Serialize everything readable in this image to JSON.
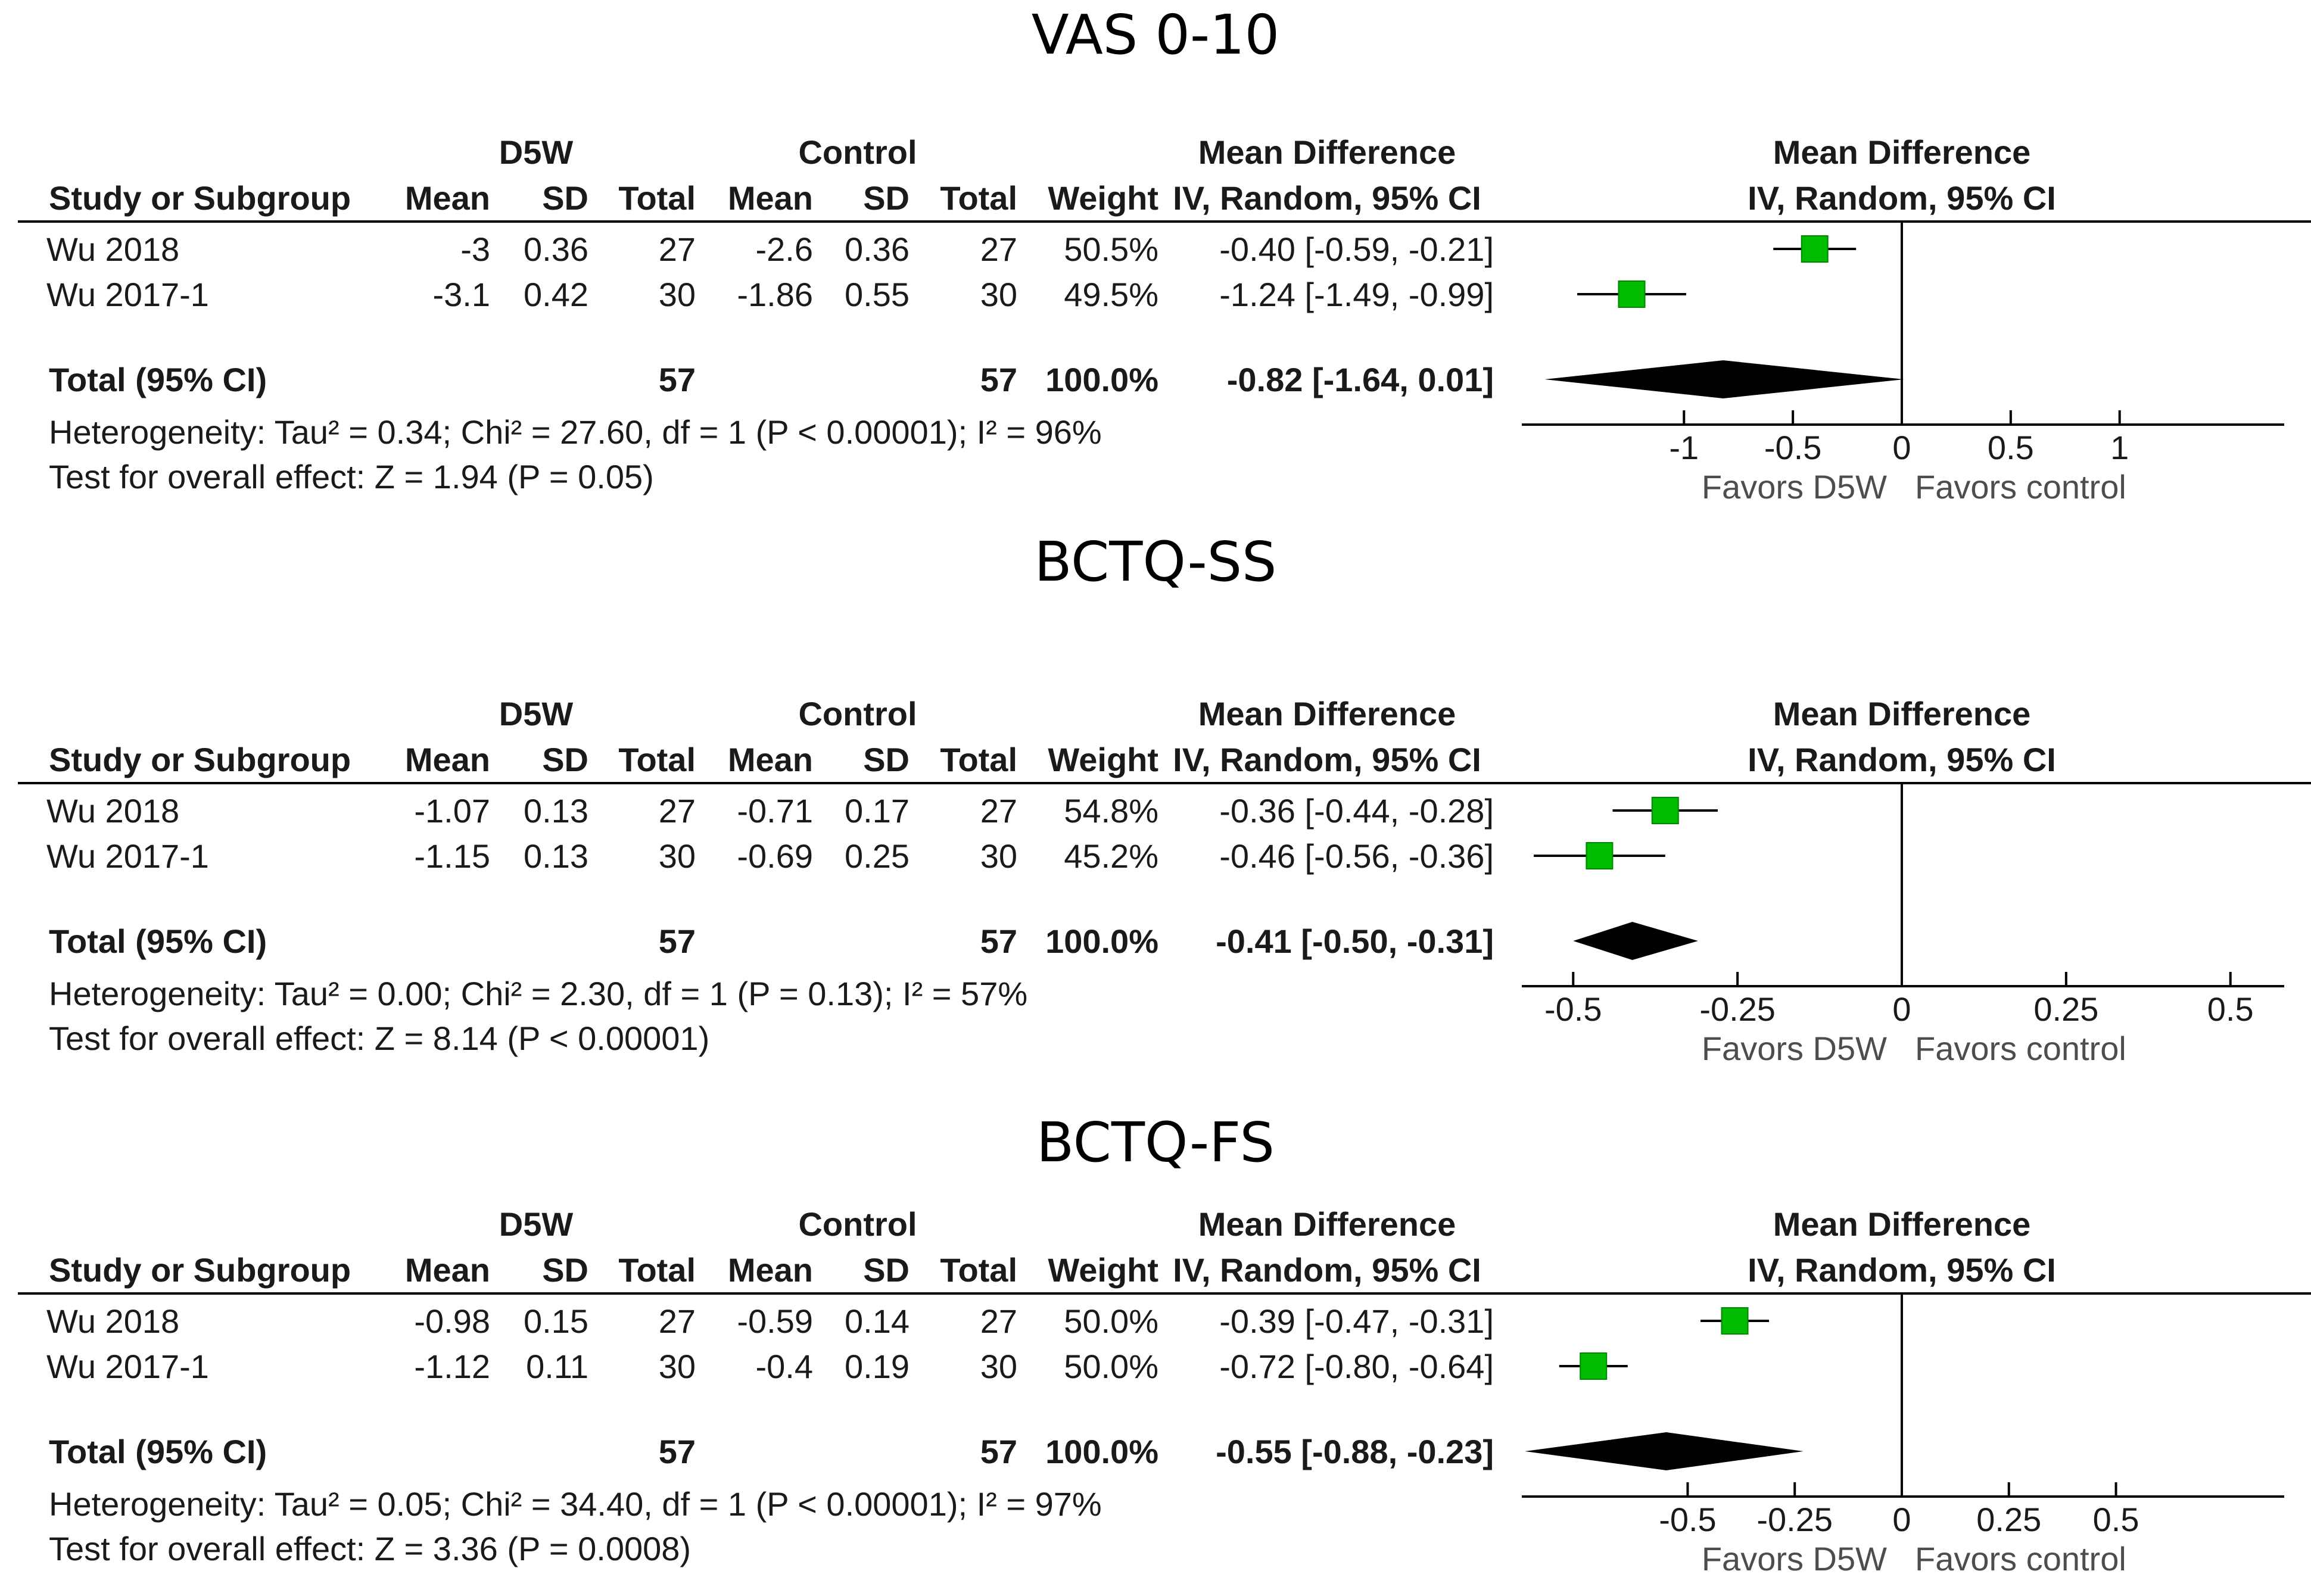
{
  "colors": {
    "marker": "#00bb00",
    "diamond": "#000000",
    "line": "#000000"
  },
  "chart_data": [
    {
      "type": "forest",
      "title": "VAS 0-10",
      "header": {
        "group1": "D5W",
        "group2": "Control",
        "md": "Mean Difference",
        "md_sub": "IV, Random, 95% CI",
        "plot_title": "Mean Difference",
        "plot_sub": "IV, Random, 95% CI",
        "study": "Study or Subgroup",
        "mean": "Mean",
        "sd": "SD",
        "total": "Total",
        "weight": "Weight"
      },
      "studies": [
        {
          "name": "Wu 2018",
          "mean1": "-3",
          "sd1": "0.36",
          "n1": "27",
          "mean2": "-2.6",
          "sd2": "0.36",
          "n2": "27",
          "weight_label": "50.5%",
          "ci_label": "-0.40 [-0.59, -0.21]",
          "md": -0.4,
          "lo": -0.59,
          "hi": -0.21,
          "weight": 50.5
        },
        {
          "name": "Wu 2017-1",
          "mean1": "-3.1",
          "sd1": "0.42",
          "n1": "30",
          "mean2": "-1.86",
          "sd2": "0.55",
          "n2": "30",
          "weight_label": "49.5%",
          "ci_label": "-1.24 [-1.49, -0.99]",
          "md": -1.24,
          "lo": -1.49,
          "hi": -0.99,
          "weight": 49.5
        }
      ],
      "total": {
        "label": "Total (95% CI)",
        "n1": "57",
        "n2": "57",
        "weight_label": "100.0%",
        "ci_label": "-0.82 [-1.64, 0.01]",
        "md": -0.82,
        "lo": -1.64,
        "hi": 0.01
      },
      "heterogeneity": "Heterogeneity: Tau² = 0.34; Chi² = 27.60, df = 1 (P < 0.00001); I² = 96%",
      "overall": "Test for overall effect: Z = 1.94 (P = 0.05)",
      "axis": {
        "ticks": [
          -1,
          -0.5,
          0,
          0.5,
          1
        ],
        "tick_labels": [
          "-1",
          "-0.5",
          "0",
          "0.5",
          "1"
        ],
        "xlim": [
          -1.75,
          1.75
        ],
        "favors_left": "Favors D5W",
        "favors_right": "Favors control"
      }
    },
    {
      "type": "forest",
      "title": "BCTQ-SS",
      "header": {
        "group1": "D5W",
        "group2": "Control",
        "md": "Mean Difference",
        "md_sub": "IV, Random, 95% CI",
        "plot_title": "Mean Difference",
        "plot_sub": "IV, Random, 95% CI",
        "study": "Study or Subgroup",
        "mean": "Mean",
        "sd": "SD",
        "total": "Total",
        "weight": "Weight"
      },
      "studies": [
        {
          "name": "Wu 2018",
          "mean1": "-1.07",
          "sd1": "0.13",
          "n1": "27",
          "mean2": "-0.71",
          "sd2": "0.17",
          "n2": "27",
          "weight_label": "54.8%",
          "ci_label": "-0.36 [-0.44, -0.28]",
          "md": -0.36,
          "lo": -0.44,
          "hi": -0.28,
          "weight": 54.8
        },
        {
          "name": "Wu 2017-1",
          "mean1": "-1.15",
          "sd1": "0.13",
          "n1": "30",
          "mean2": "-0.69",
          "sd2": "0.25",
          "n2": "30",
          "weight_label": "45.2%",
          "ci_label": "-0.46 [-0.56, -0.36]",
          "md": -0.46,
          "lo": -0.56,
          "hi": -0.36,
          "weight": 45.2
        }
      ],
      "total": {
        "label": "Total (95% CI)",
        "n1": "57",
        "n2": "57",
        "weight_label": "100.0%",
        "ci_label": "-0.41 [-0.50, -0.31]",
        "md": -0.41,
        "lo": -0.5,
        "hi": -0.31
      },
      "heterogeneity": "Heterogeneity: Tau² = 0.00; Chi² = 2.30, df = 1 (P = 0.13); I² = 57%",
      "overall": "Test for overall effect: Z = 8.14 (P < 0.00001)",
      "axis": {
        "ticks": [
          -0.5,
          -0.25,
          0,
          0.25,
          0.5
        ],
        "tick_labels": [
          "-0.5",
          "-0.25",
          "0",
          "0.25",
          "0.5"
        ],
        "xlim": [
          -0.58,
          0.58
        ],
        "favors_left": "Favors D5W",
        "favors_right": "Favors control"
      }
    },
    {
      "type": "forest",
      "title": "BCTQ-FS",
      "header": {
        "group1": "D5W",
        "group2": "Control",
        "md": "Mean Difference",
        "md_sub": "IV, Random, 95% CI",
        "plot_title": "Mean Difference",
        "plot_sub": "IV, Random, 95% CI",
        "study": "Study or Subgroup",
        "mean": "Mean",
        "sd": "SD",
        "total": "Total",
        "weight": "Weight"
      },
      "studies": [
        {
          "name": "Wu 2018",
          "mean1": "-0.98",
          "sd1": "0.15",
          "n1": "27",
          "mean2": "-0.59",
          "sd2": "0.14",
          "n2": "27",
          "weight_label": "50.0%",
          "ci_label": "-0.39 [-0.47, -0.31]",
          "md": -0.39,
          "lo": -0.47,
          "hi": -0.31,
          "weight": 50.0
        },
        {
          "name": "Wu 2017-1",
          "mean1": "-1.12",
          "sd1": "0.11",
          "n1": "30",
          "mean2": "-0.4",
          "sd2": "0.19",
          "n2": "30",
          "weight_label": "50.0%",
          "ci_label": "-0.72 [-0.80, -0.64]",
          "md": -0.72,
          "lo": -0.8,
          "hi": -0.64,
          "weight": 50.0
        }
      ],
      "total": {
        "label": "Total (95% CI)",
        "n1": "57",
        "n2": "57",
        "weight_label": "100.0%",
        "ci_label": "-0.55 [-0.88, -0.23]",
        "md": -0.55,
        "lo": -0.88,
        "hi": -0.23
      },
      "heterogeneity": "Heterogeneity: Tau² = 0.05; Chi² = 34.40, df = 1 (P < 0.00001); I² = 97%",
      "overall": "Test for overall effect: Z = 3.36 (P = 0.0008)",
      "axis": {
        "ticks": [
          -0.5,
          -0.25,
          0,
          0.25,
          0.5
        ],
        "tick_labels": [
          "-0.5",
          "-0.25",
          "0",
          "0.25",
          "0.5"
        ],
        "xlim": [
          -0.89,
          0.89
        ],
        "favors_left": "Favors D5W",
        "favors_right": "Favors control"
      }
    }
  ]
}
